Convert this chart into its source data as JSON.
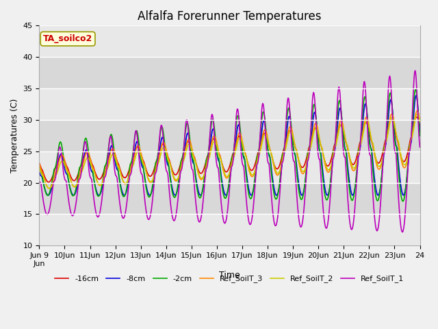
{
  "title": "Alfalfa Forerunner Temperatures",
  "xlabel": "Time",
  "ylabel": "Temperatures (C)",
  "ylim": [
    10,
    45
  ],
  "annotation": "TA_soilco2",
  "annotation_color": "#cc0000",
  "annotation_bg": "#ffffdd",
  "annotation_border": "#999900",
  "fig_bg": "#f0f0f0",
  "plot_bg": "#e8e8e8",
  "title_fontsize": 12,
  "axis_fontsize": 9,
  "tick_fontsize": 8,
  "legend_fontsize": 8,
  "series": [
    {
      "label": "-16cm",
      "color": "#dd0000",
      "lw": 1.2
    },
    {
      "label": "-8cm",
      "color": "#0000dd",
      "lw": 1.2
    },
    {
      "label": "-2cm",
      "color": "#00aa00",
      "lw": 1.2
    },
    {
      "label": "Ref_SoilT_3",
      "color": "#ff8800",
      "lw": 1.2
    },
    {
      "label": "Ref_SoilT_2",
      "color": "#cccc00",
      "lw": 1.2
    },
    {
      "label": "Ref_SoilT_1",
      "color": "#bb00bb",
      "lw": 1.2
    }
  ],
  "grid_color": "#ffffff",
  "n_days": 15,
  "pts_per_day": 48
}
